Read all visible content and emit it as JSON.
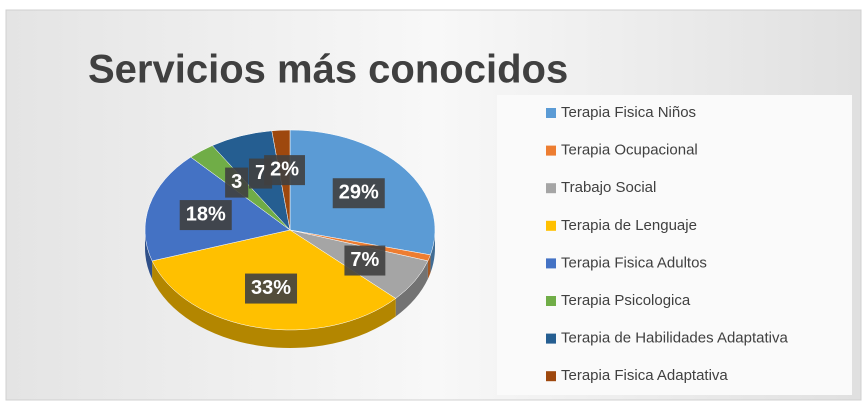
{
  "chart_data": {
    "type": "pie",
    "title": "Servicios más conocidos",
    "categories": [
      "Terapia Fisica Niños",
      "Terapia Ocupacional",
      "Trabajo Social",
      "Terapia de Lenguaje",
      "Terapia Fisica Adultos",
      "Terapia Psicologica",
      "Terapia de Habilidades Adaptativa",
      "Terapia Fisica Adaptativa"
    ],
    "values": [
      29,
      1,
      7,
      33,
      18,
      3,
      7,
      2
    ],
    "value_labels": [
      "29%",
      null,
      "7%",
      "33%",
      "18%",
      "3",
      "7",
      "2%"
    ],
    "colors": [
      "#5b9bd5",
      "#ed7d31",
      "#a5a5a5",
      "#ffc000",
      "#4472c4",
      "#70ad47",
      "#255e91",
      "#9e480e"
    ],
    "legend": "right"
  }
}
